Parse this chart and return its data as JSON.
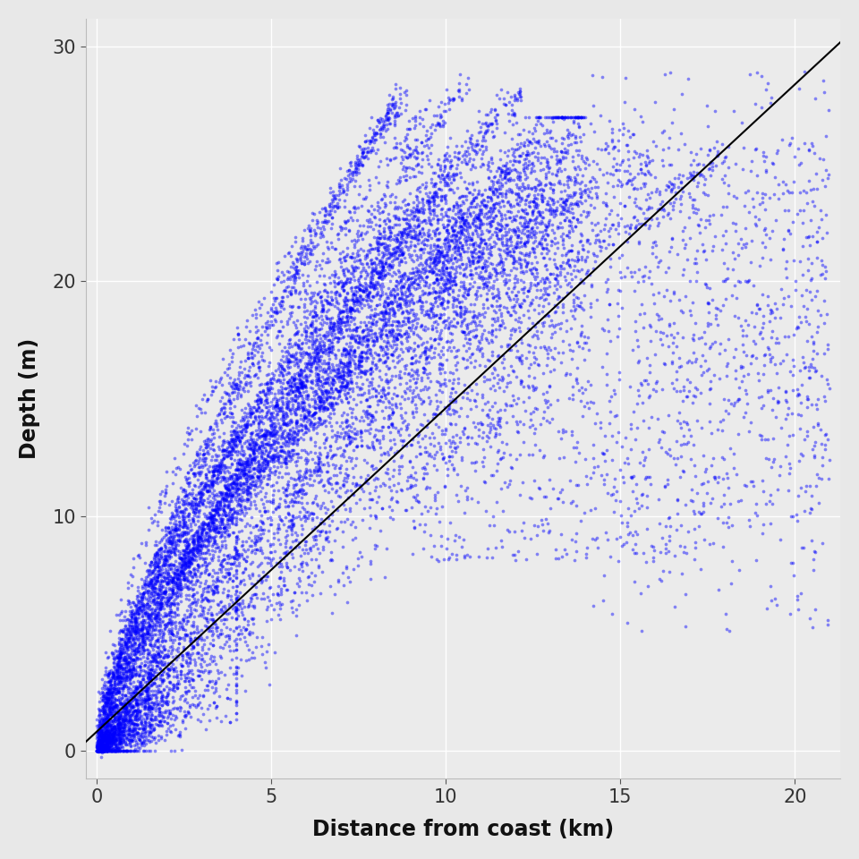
{
  "xlabel": "Distance from coast (km)",
  "ylabel": "Depth (m)",
  "xlim": [
    -0.3,
    21.3
  ],
  "ylim": [
    -1.2,
    31.2
  ],
  "xticks": [
    0,
    5,
    10,
    15,
    20
  ],
  "yticks": [
    0,
    10,
    20,
    30
  ],
  "bg_color": "#EBEBEB",
  "grid_color": "#FFFFFF",
  "point_color": "#0000FF",
  "point_alpha": 0.45,
  "point_size": 7,
  "line_color": "#000000",
  "line_width": 1.5,
  "seed": 12345,
  "slope": 1.38,
  "intercept": 0.8,
  "outer_bg": "#E8E8E8"
}
